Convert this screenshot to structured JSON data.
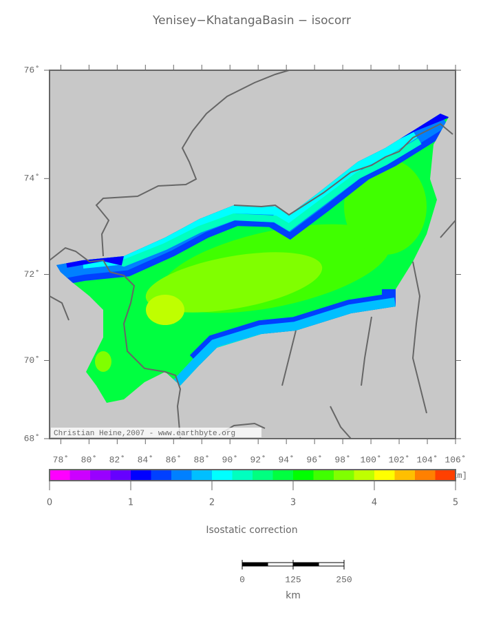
{
  "title": "Yenisey−KhatangaBasin − isocorr",
  "map": {
    "lon_range": [
      77.2,
      106
    ],
    "lat_range": [
      68,
      76
    ],
    "lon_ticks": [
      {
        "value": 78,
        "label": "78˚"
      },
      {
        "value": 80,
        "label": "80˚"
      },
      {
        "value": 82,
        "label": "82˚"
      },
      {
        "value": 84,
        "label": "84˚"
      },
      {
        "value": 86,
        "label": "86˚"
      },
      {
        "value": 88,
        "label": "88˚"
      },
      {
        "value": 90,
        "label": "90˚"
      },
      {
        "value": 92,
        "label": "92˚"
      },
      {
        "value": 94,
        "label": "94˚"
      },
      {
        "value": 96,
        "label": "96˚"
      },
      {
        "value": 98,
        "label": "98˚"
      },
      {
        "value": 100,
        "label": "100˚"
      },
      {
        "value": 102,
        "label": "102˚"
      },
      {
        "value": 104,
        "label": "104˚"
      },
      {
        "value": 106,
        "label": "106˚"
      }
    ],
    "lat_ticks": [
      {
        "value": 68,
        "label": "68˚"
      },
      {
        "value": 70,
        "label": "70˚"
      },
      {
        "value": 72,
        "label": "72˚"
      },
      {
        "value": 74,
        "label": "74˚"
      },
      {
        "value": 76,
        "label": "76˚"
      }
    ],
    "credit": "Christian Heine,2007 - www.earthbyte.org"
  },
  "colorbar": {
    "label": "Isostatic correction",
    "unit": "[km]",
    "range": [
      0,
      5
    ],
    "ticks": [
      0,
      1,
      2,
      3,
      4,
      5
    ],
    "colors": [
      "#ff00ff",
      "#cc00ff",
      "#9900ff",
      "#6600ff",
      "#0000ff",
      "#0040ff",
      "#0080ff",
      "#00bfff",
      "#00ffff",
      "#00ffbf",
      "#00ff80",
      "#00ff40",
      "#00ff00",
      "#40ff00",
      "#80ff00",
      "#bfff00",
      "#ffff00",
      "#ffbf00",
      "#ff8000",
      "#ff4000"
    ]
  },
  "scalebar": {
    "ticks": [
      0,
      125,
      250
    ],
    "range": [
      0,
      250
    ],
    "unit": "km"
  }
}
